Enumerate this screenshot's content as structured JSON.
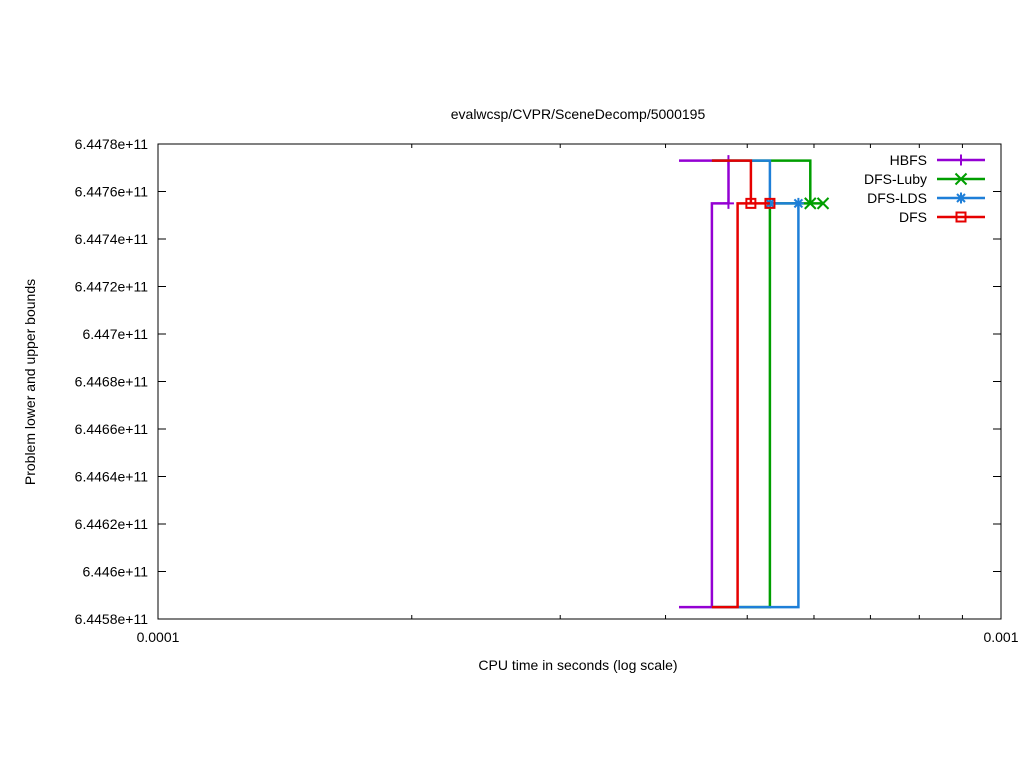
{
  "chart_data": {
    "type": "line",
    "title": "evalwcsp/CVPR/SceneDecomp/5000195",
    "xlabel": "CPU time in seconds (log scale)",
    "ylabel": "Problem lower and upper bounds",
    "xscale": "log",
    "xlim": [
      0.0001,
      0.001
    ],
    "ylim": [
      644580000000,
      644780000000
    ],
    "x_ticks": [
      {
        "value": 0.0001,
        "label": "0.0001"
      },
      {
        "value": 0.001,
        "label": "0.001"
      }
    ],
    "y_ticks": [
      {
        "value": 644580000000,
        "label": "6.4458e+11"
      },
      {
        "value": 644600000000,
        "label": "6.446e+11"
      },
      {
        "value": 644620000000,
        "label": "6.4462e+11"
      },
      {
        "value": 644640000000,
        "label": "6.4464e+11"
      },
      {
        "value": 644660000000,
        "label": "6.4466e+11"
      },
      {
        "value": 644680000000,
        "label": "6.4468e+11"
      },
      {
        "value": 644700000000,
        "label": "6.447e+11"
      },
      {
        "value": 644720000000,
        "label": "6.4472e+11"
      },
      {
        "value": 644740000000,
        "label": "6.4474e+11"
      },
      {
        "value": 644760000000,
        "label": "6.4476e+11"
      },
      {
        "value": 644780000000,
        "label": "6.4478e+11"
      }
    ],
    "legend_position": "top-right",
    "grid": false,
    "series": [
      {
        "name": "HBFS",
        "color": "#9400d3",
        "marker": "plus",
        "lower": [
          [
            0.000415,
            644585000000
          ],
          [
            0.000454,
            644585000000
          ],
          [
            0.000454,
            644755000000
          ],
          [
            0.000475,
            644755000000
          ]
        ],
        "upper": [
          [
            0.000415,
            644773000000
          ],
          [
            0.000475,
            644773000000
          ],
          [
            0.000475,
            644755000000
          ]
        ],
        "points": [
          [
            0.000475,
            644773000000
          ],
          [
            0.000475,
            644755000000
          ]
        ]
      },
      {
        "name": "DFS-Luby",
        "color": "#009e00",
        "marker": "x",
        "lower": [
          [
            0.000454,
            644585000000
          ],
          [
            0.000532,
            644585000000
          ],
          [
            0.000532,
            644755000000
          ],
          [
            0.000615,
            644755000000
          ]
        ],
        "upper": [
          [
            0.000454,
            644773000000
          ],
          [
            0.000594,
            644773000000
          ],
          [
            0.000594,
            644755000000
          ]
        ],
        "points": [
          [
            0.000594,
            644755000000
          ],
          [
            0.000615,
            644755000000
          ]
        ]
      },
      {
        "name": "DFS-LDS",
        "color": "#1e7fd8",
        "marker": "star",
        "lower": [
          [
            0.000454,
            644585000000
          ],
          [
            0.000575,
            644585000000
          ],
          [
            0.000575,
            644755000000
          ],
          [
            0.000577,
            644755000000
          ]
        ],
        "upper": [
          [
            0.000454,
            644773000000
          ],
          [
            0.000532,
            644773000000
          ],
          [
            0.000532,
            644755000000
          ],
          [
            0.000575,
            644755000000
          ]
        ],
        "points": [
          [
            0.000532,
            644755000000
          ],
          [
            0.000575,
            644755000000
          ]
        ]
      },
      {
        "name": "DFS",
        "color": "#e60000",
        "marker": "square",
        "lower": [
          [
            0.000454,
            644585000000
          ],
          [
            0.000487,
            644585000000
          ],
          [
            0.000487,
            644755000000
          ],
          [
            0.000532,
            644755000000
          ]
        ],
        "upper": [
          [
            0.000454,
            644773000000
          ],
          [
            0.000505,
            644773000000
          ],
          [
            0.000505,
            644755000000
          ]
        ],
        "points": [
          [
            0.000505,
            644755000000
          ],
          [
            0.000532,
            644755000000
          ]
        ]
      }
    ]
  }
}
